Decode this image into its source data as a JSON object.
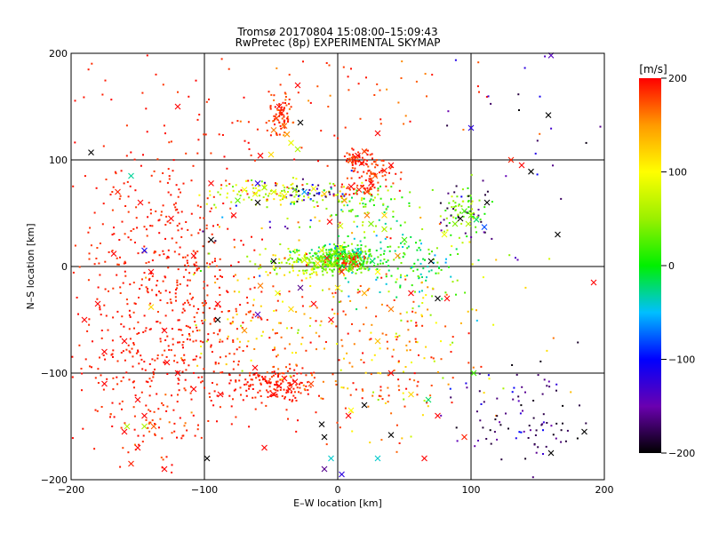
{
  "chart_data": {
    "type": "scatter",
    "title": "Tromsø 20170804 15:08:00–15:09:43",
    "subtitle": "RwPretec (8p) EXPERIMENTAL SKYMAP",
    "xlabel": "E–W location [km]",
    "ylabel": "N–S location [km]",
    "xlim": [
      -200,
      200
    ],
    "ylim": [
      -200,
      200
    ],
    "xticks": [
      "−200",
      "−100",
      "0",
      "100",
      "200"
    ],
    "yticks": [
      "200",
      "100",
      "0",
      "−100",
      "−200"
    ],
    "xtick_values": [
      -200,
      -100,
      0,
      100,
      200
    ],
    "ytick_values": [
      200,
      100,
      0,
      -100,
      -200
    ],
    "grid": true,
    "colorbar": {
      "label": "[m/s]",
      "min": -200,
      "max": 200,
      "ticks": [
        "200",
        "100",
        "0",
        "−100",
        "−200"
      ],
      "tick_values": [
        200,
        100,
        0,
        -100,
        -200
      ]
    },
    "points": [
      {
        "x": -44,
        "y": 150,
        "v": 200,
        "m": "x"
      },
      {
        "x": -42,
        "y": 144,
        "v": 190,
        "m": "x"
      },
      {
        "x": -46,
        "y": 139,
        "v": 180,
        "m": "x"
      },
      {
        "x": -40,
        "y": 132,
        "v": 170,
        "m": "x"
      },
      {
        "x": -48,
        "y": 128,
        "v": 160,
        "m": "x"
      },
      {
        "x": -38,
        "y": 124,
        "v": 150,
        "m": "x"
      },
      {
        "x": -35,
        "y": 116,
        "v": 90,
        "m": "x"
      },
      {
        "x": -30,
        "y": 110,
        "v": 60,
        "m": "x"
      },
      {
        "x": -28,
        "y": 135,
        "v": -200,
        "m": "x"
      },
      {
        "x": -50,
        "y": 105,
        "v": 120,
        "m": "x"
      },
      {
        "x": -58,
        "y": 104,
        "v": 200,
        "m": "x"
      },
      {
        "x": 15,
        "y": 104,
        "v": 200,
        "m": "x"
      },
      {
        "x": 12,
        "y": 100,
        "v": 190,
        "m": "x"
      },
      {
        "x": 18,
        "y": 97,
        "v": 200,
        "m": "x"
      },
      {
        "x": 20,
        "y": 108,
        "v": 180,
        "m": "x"
      },
      {
        "x": 30,
        "y": 125,
        "v": 200,
        "m": "x"
      },
      {
        "x": 35,
        "y": 90,
        "v": 190,
        "m": "x"
      },
      {
        "x": 40,
        "y": 95,
        "v": 200,
        "m": "x"
      },
      {
        "x": 28,
        "y": 85,
        "v": 170,
        "m": "x"
      },
      {
        "x": 10,
        "y": 75,
        "v": 200,
        "m": "x"
      },
      {
        "x": 16,
        "y": 72,
        "v": 190,
        "m": "x"
      },
      {
        "x": 22,
        "y": 70,
        "v": 180,
        "m": "x"
      },
      {
        "x": 25,
        "y": 78,
        "v": 200,
        "m": "x"
      },
      {
        "x": 5,
        "y": 62,
        "v": 150,
        "m": "x"
      },
      {
        "x": -70,
        "y": 72,
        "v": 100,
        "m": "x"
      },
      {
        "x": -62,
        "y": 68,
        "v": 90,
        "m": "x"
      },
      {
        "x": -55,
        "y": 74,
        "v": 60,
        "m": "x"
      },
      {
        "x": -48,
        "y": 70,
        "v": 80,
        "m": "x"
      },
      {
        "x": -40,
        "y": 66,
        "v": 110,
        "m": "x"
      },
      {
        "x": -32,
        "y": 72,
        "v": 40,
        "m": "x"
      },
      {
        "x": -25,
        "y": 70,
        "v": -60,
        "m": "x"
      },
      {
        "x": -18,
        "y": 73,
        "v": 100,
        "m": "x"
      },
      {
        "x": -10,
        "y": 68,
        "v": 130,
        "m": "x"
      },
      {
        "x": -75,
        "y": 62,
        "v": 30,
        "m": "x"
      },
      {
        "x": -60,
        "y": 78,
        "v": -120,
        "m": "x"
      },
      {
        "x": -78,
        "y": 48,
        "v": 200,
        "m": "x"
      },
      {
        "x": 95,
        "y": 52,
        "v": 20,
        "m": "x"
      },
      {
        "x": 100,
        "y": 48,
        "v": 40,
        "m": "x"
      },
      {
        "x": 92,
        "y": 45,
        "v": -200,
        "m": "x"
      },
      {
        "x": 98,
        "y": 40,
        "v": 60,
        "m": "x"
      },
      {
        "x": 104,
        "y": 44,
        "v": -20,
        "m": "x"
      },
      {
        "x": 112,
        "y": 60,
        "v": -200,
        "m": "x"
      },
      {
        "x": 130,
        "y": 100,
        "v": 190,
        "m": "x"
      },
      {
        "x": 138,
        "y": 95,
        "v": 200,
        "m": "x"
      },
      {
        "x": 145,
        "y": 89,
        "v": -200,
        "m": "x"
      },
      {
        "x": 158,
        "y": 142,
        "v": -200,
        "m": "x"
      },
      {
        "x": 160,
        "y": 198,
        "v": -140,
        "m": "x"
      },
      {
        "x": 100,
        "y": 130,
        "v": -120,
        "m": "x"
      },
      {
        "x": -185,
        "y": 107,
        "v": -200,
        "m": "x"
      },
      {
        "x": -155,
        "y": 85,
        "v": -30,
        "m": "x"
      },
      {
        "x": -165,
        "y": 70,
        "v": 190,
        "m": "x"
      },
      {
        "x": -148,
        "y": 60,
        "v": 200,
        "m": "x"
      },
      {
        "x": -145,
        "y": 15,
        "v": -110,
        "m": "x"
      },
      {
        "x": -125,
        "y": 45,
        "v": 200,
        "m": "x"
      },
      {
        "x": -168,
        "y": 12,
        "v": 200,
        "m": "x"
      },
      {
        "x": -140,
        "y": -5,
        "v": 200,
        "m": "x"
      },
      {
        "x": -108,
        "y": 10,
        "v": 200,
        "m": "x"
      },
      {
        "x": -95,
        "y": 25,
        "v": -200,
        "m": "x"
      },
      {
        "x": -90,
        "y": -35,
        "v": 200,
        "m": "x"
      },
      {
        "x": -180,
        "y": -35,
        "v": 200,
        "m": "x"
      },
      {
        "x": -190,
        "y": -50,
        "v": 200,
        "m": "x"
      },
      {
        "x": -175,
        "y": -80,
        "v": 200,
        "m": "x"
      },
      {
        "x": -160,
        "y": -70,
        "v": 200,
        "m": "x"
      },
      {
        "x": -130,
        "y": -60,
        "v": 200,
        "m": "x"
      },
      {
        "x": -120,
        "y": -100,
        "v": 200,
        "m": "x"
      },
      {
        "x": -175,
        "y": -110,
        "v": 200,
        "m": "x"
      },
      {
        "x": -150,
        "y": -125,
        "v": 200,
        "m": "x"
      },
      {
        "x": -145,
        "y": -140,
        "v": 200,
        "m": "x"
      },
      {
        "x": -160,
        "y": -155,
        "v": 200,
        "m": "x"
      },
      {
        "x": -138,
        "y": -150,
        "v": 170,
        "m": "x"
      },
      {
        "x": -145,
        "y": -150,
        "v": 60,
        "m": "x"
      },
      {
        "x": -150,
        "y": -170,
        "v": 200,
        "m": "x"
      },
      {
        "x": -155,
        "y": -185,
        "v": 190,
        "m": "x"
      },
      {
        "x": -130,
        "y": -190,
        "v": 200,
        "m": "x"
      },
      {
        "x": -40,
        "y": -105,
        "v": 200,
        "m": "x"
      },
      {
        "x": -44,
        "y": -112,
        "v": 200,
        "m": "x"
      },
      {
        "x": -36,
        "y": -115,
        "v": 190,
        "m": "x"
      },
      {
        "x": -48,
        "y": -120,
        "v": 200,
        "m": "x"
      },
      {
        "x": -32,
        "y": -108,
        "v": 200,
        "m": "x"
      },
      {
        "x": -20,
        "y": -110,
        "v": 180,
        "m": "x"
      },
      {
        "x": -62,
        "y": -95,
        "v": 200,
        "m": "x"
      },
      {
        "x": -88,
        "y": -120,
        "v": 200,
        "m": "x"
      },
      {
        "x": -98,
        "y": -180,
        "v": -200,
        "m": "x"
      },
      {
        "x": -55,
        "y": -170,
        "v": 200,
        "m": "x"
      },
      {
        "x": 40,
        "y": -100,
        "v": 200,
        "m": "x"
      },
      {
        "x": 55,
        "y": -120,
        "v": 120,
        "m": "x"
      },
      {
        "x": 68,
        "y": -125,
        "v": -20,
        "m": "x"
      },
      {
        "x": 75,
        "y": -140,
        "v": 200,
        "m": "x"
      },
      {
        "x": 95,
        "y": -160,
        "v": 190,
        "m": "x"
      },
      {
        "x": 102,
        "y": -100,
        "v": 20,
        "m": "x"
      },
      {
        "x": 65,
        "y": -180,
        "v": 200,
        "m": "x"
      },
      {
        "x": 40,
        "y": -158,
        "v": -200,
        "m": "x"
      },
      {
        "x": 30,
        "y": -180,
        "v": -40,
        "m": "x"
      },
      {
        "x": -10,
        "y": -190,
        "v": -160,
        "m": "x"
      },
      {
        "x": -5,
        "y": -180,
        "v": -40,
        "m": "x"
      },
      {
        "x": 3,
        "y": -195,
        "v": -120,
        "m": "x"
      },
      {
        "x": 20,
        "y": -130,
        "v": -200,
        "m": "x"
      },
      {
        "x": 10,
        "y": -135,
        "v": 100,
        "m": "x"
      },
      {
        "x": 160,
        "y": -175,
        "v": -200,
        "m": "x"
      },
      {
        "x": 185,
        "y": -155,
        "v": -200,
        "m": "x"
      },
      {
        "x": 192,
        "y": -15,
        "v": 200,
        "m": "x"
      },
      {
        "x": 165,
        "y": 30,
        "v": -200,
        "m": "x"
      },
      {
        "x": -128,
        "y": -90,
        "v": 200,
        "m": "x"
      },
      {
        "x": -58,
        "y": -18,
        "v": 160,
        "m": "x"
      },
      {
        "x": -28,
        "y": -20,
        "v": -160,
        "m": "x"
      },
      {
        "x": -35,
        "y": -40,
        "v": 120,
        "m": "x"
      },
      {
        "x": -45,
        "y": -25,
        "v": 90,
        "m": "x"
      },
      {
        "x": -60,
        "y": -45,
        "v": -140,
        "m": "x"
      },
      {
        "x": -90,
        "y": -50,
        "v": -200,
        "m": "x"
      },
      {
        "x": -70,
        "y": -60,
        "v": 150,
        "m": "x"
      },
      {
        "x": 30,
        "y": -5,
        "v": 100,
        "m": "x"
      },
      {
        "x": 55,
        "y": -25,
        "v": 200,
        "m": "x"
      },
      {
        "x": 75,
        "y": -30,
        "v": -200,
        "m": "x"
      },
      {
        "x": 20,
        "y": -25,
        "v": 140,
        "m": "x"
      },
      {
        "x": 0,
        "y": -20,
        "v": 110,
        "m": "x"
      },
      {
        "x": 70,
        "y": 5,
        "v": -200,
        "m": "x"
      },
      {
        "x": 82,
        "y": -30,
        "v": 200,
        "m": "x"
      },
      {
        "x": -5,
        "y": -50,
        "v": 200,
        "m": "x"
      },
      {
        "x": 40,
        "y": -40,
        "v": 160,
        "m": "x"
      },
      {
        "x": 30,
        "y": -70,
        "v": 130,
        "m": "x"
      },
      {
        "x": -18,
        "y": -35,
        "v": 200,
        "m": "x"
      },
      {
        "x": -60,
        "y": 60,
        "v": -200,
        "m": "x"
      },
      {
        "x": -12,
        "y": 15,
        "v": 90,
        "m": "x"
      },
      {
        "x": -8,
        "y": 8,
        "v": 190,
        "m": "x"
      },
      {
        "x": -48,
        "y": 5,
        "v": -200,
        "m": "x"
      },
      {
        "x": 6,
        "y": 10,
        "v": 30,
        "m": "x"
      },
      {
        "x": 12,
        "y": 4,
        "v": 20,
        "m": "x"
      },
      {
        "x": 18,
        "y": 2,
        "v": 10,
        "m": "x"
      },
      {
        "x": 10,
        "y": -3,
        "v": 40,
        "m": "x"
      },
      {
        "x": -3,
        "y": 2,
        "v": 60,
        "m": "x"
      },
      {
        "x": 3,
        "y": -5,
        "v": 190,
        "m": "x"
      },
      {
        "x": -15,
        "y": 3,
        "v": 120,
        "m": "x"
      },
      {
        "x": 26,
        "y": 5,
        "v": -20,
        "m": "x"
      },
      {
        "x": -25,
        "y": 6,
        "v": 80,
        "m": "x"
      },
      {
        "x": 2,
        "y": 18,
        "v": 100,
        "m": "x"
      },
      {
        "x": 15,
        "y": 15,
        "v": -40,
        "m": "x"
      },
      {
        "x": -6,
        "y": 42,
        "v": 200,
        "m": "x"
      },
      {
        "x": 2,
        "y": 38,
        "v": 80,
        "m": "x"
      },
      {
        "x": 22,
        "y": 48,
        "v": 160,
        "m": "x"
      },
      {
        "x": 35,
        "y": 35,
        "v": 60,
        "m": "x"
      },
      {
        "x": 50,
        "y": 25,
        "v": 20,
        "m": "x"
      },
      {
        "x": 45,
        "y": 10,
        "v": 150,
        "m": "x"
      },
      {
        "x": 88,
        "y": 40,
        "v": 40,
        "m": "x"
      },
      {
        "x": 80,
        "y": 30,
        "v": 90,
        "m": "x"
      },
      {
        "x": 110,
        "y": 37,
        "v": -80,
        "m": "x"
      },
      {
        "x": -95,
        "y": 78,
        "v": 200,
        "m": "x"
      },
      {
        "x": -120,
        "y": 150,
        "v": 200,
        "m": "x"
      },
      {
        "x": -30,
        "y": 170,
        "v": 200,
        "m": "x"
      },
      {
        "x": 25,
        "y": 40,
        "v": 40,
        "m": "x"
      },
      {
        "x": 35,
        "y": 48,
        "v": 120,
        "m": "x"
      },
      {
        "x": -140,
        "y": -38,
        "v": 120,
        "m": "x"
      },
      {
        "x": 8,
        "y": -140,
        "v": 200,
        "m": "x"
      },
      {
        "x": -10,
        "y": -160,
        "v": -200,
        "m": "x"
      },
      {
        "x": -12,
        "y": -148,
        "v": -200,
        "m": "x"
      },
      {
        "x": -158,
        "y": -150,
        "v": 60,
        "m": "x"
      },
      {
        "x": -108,
        "y": -115,
        "v": 200,
        "m": "x"
      }
    ],
    "clusters": [
      {
        "cx": 5,
        "cy": 8,
        "sx": 12,
        "sy": 6,
        "n": 260,
        "vmin": -40,
        "vmax": 60
      },
      {
        "cx": -5,
        "cy": 4,
        "sx": 14,
        "sy": 6,
        "n": 120,
        "vmin": 10,
        "vmax": 60
      },
      {
        "cx": 10,
        "cy": 5,
        "sx": 5,
        "sy": 4,
        "n": 50,
        "vmin": 170,
        "vmax": 200
      },
      {
        "cx": -28,
        "cy": 4,
        "sx": 16,
        "sy": 6,
        "n": 90,
        "vmin": 20,
        "vmax": 110
      },
      {
        "cx": 45,
        "cy": 10,
        "sx": 25,
        "sy": 10,
        "n": 80,
        "vmin": -60,
        "vmax": 40
      },
      {
        "cx": 60,
        "cy": -12,
        "sx": 25,
        "sy": 16,
        "n": 60,
        "vmin": -60,
        "vmax": 60
      },
      {
        "cx": -40,
        "cy": 70,
        "sx": 28,
        "sy": 6,
        "n": 110,
        "vmin": 30,
        "vmax": 120
      },
      {
        "cx": -20,
        "cy": 70,
        "sx": 14,
        "sy": 5,
        "n": 35,
        "vmin": -200,
        "vmax": -80
      },
      {
        "cx": 22,
        "cy": 55,
        "sx": 18,
        "sy": 12,
        "n": 70,
        "vmin": -40,
        "vmax": 80
      },
      {
        "cx": 95,
        "cy": 50,
        "sx": 9,
        "sy": 12,
        "n": 60,
        "vmin": 0,
        "vmax": 80
      },
      {
        "cx": 95,
        "cy": 52,
        "sx": 10,
        "sy": 12,
        "n": 25,
        "vmin": -200,
        "vmax": -150
      },
      {
        "cx": -42,
        "cy": 142,
        "sx": 5,
        "sy": 10,
        "n": 70,
        "vmin": 160,
        "vmax": 200
      },
      {
        "cx": 15,
        "cy": 100,
        "sx": 7,
        "sy": 5,
        "n": 60,
        "vmin": 170,
        "vmax": 200
      },
      {
        "cx": 32,
        "cy": 87,
        "sx": 9,
        "sy": 6,
        "n": 40,
        "vmin": 170,
        "vmax": 200
      },
      {
        "cx": 17,
        "cy": 73,
        "sx": 8,
        "sy": 4,
        "n": 40,
        "vmin": 170,
        "vmax": 200
      },
      {
        "cx": -125,
        "cy": -70,
        "sx": 40,
        "sy": 40,
        "n": 420,
        "vmin": 180,
        "vmax": 200
      },
      {
        "cx": -125,
        "cy": 25,
        "sx": 35,
        "sy": 35,
        "n": 200,
        "vmin": 180,
        "vmax": 200
      },
      {
        "cx": -45,
        "cy": -110,
        "sx": 15,
        "sy": 8,
        "n": 140,
        "vmin": 180,
        "vmax": 200
      },
      {
        "cx": 30,
        "cy": -95,
        "sx": 35,
        "sy": 40,
        "n": 120,
        "vmin": 150,
        "vmax": 200
      },
      {
        "cx": 30,
        "cy": -110,
        "sx": 30,
        "sy": 35,
        "n": 30,
        "vmin": 40,
        "vmax": 130
      },
      {
        "cx": -60,
        "cy": -50,
        "sx": 25,
        "sy": 25,
        "n": 50,
        "vmin": 100,
        "vmax": 200
      },
      {
        "cx": -140,
        "cy": -155,
        "sx": 15,
        "sy": 20,
        "n": 45,
        "vmin": 160,
        "vmax": 200
      },
      {
        "cx": 140,
        "cy": -140,
        "sx": 25,
        "sy": 25,
        "n": 70,
        "vmin": -200,
        "vmax": -150
      },
      {
        "cx": 130,
        "cy": -140,
        "sx": 30,
        "sy": 30,
        "n": 20,
        "vmin": -160,
        "vmax": -90
      },
      {
        "cx": -100,
        "cy": 120,
        "sx": 60,
        "sy": 45,
        "n": 110,
        "vmin": 180,
        "vmax": 200
      },
      {
        "cx": 20,
        "cy": 170,
        "sx": 60,
        "sy": 25,
        "n": 45,
        "vmin": 150,
        "vmax": 200
      },
      {
        "cx": 140,
        "cy": 130,
        "sx": 40,
        "sy": 50,
        "n": 25,
        "vmin": -200,
        "vmax": -100
      },
      {
        "cx": 0,
        "cy": -40,
        "sx": 70,
        "sy": 40,
        "n": 120,
        "vmin": 40,
        "vmax": 200
      },
      {
        "cx": 60,
        "cy": -60,
        "sx": 25,
        "sy": 30,
        "n": 30,
        "vmin": 60,
        "vmax": 200
      },
      {
        "cx": -30,
        "cy": 30,
        "sx": 40,
        "sy": 20,
        "n": 40,
        "vmin": -200,
        "vmax": 200
      }
    ]
  }
}
